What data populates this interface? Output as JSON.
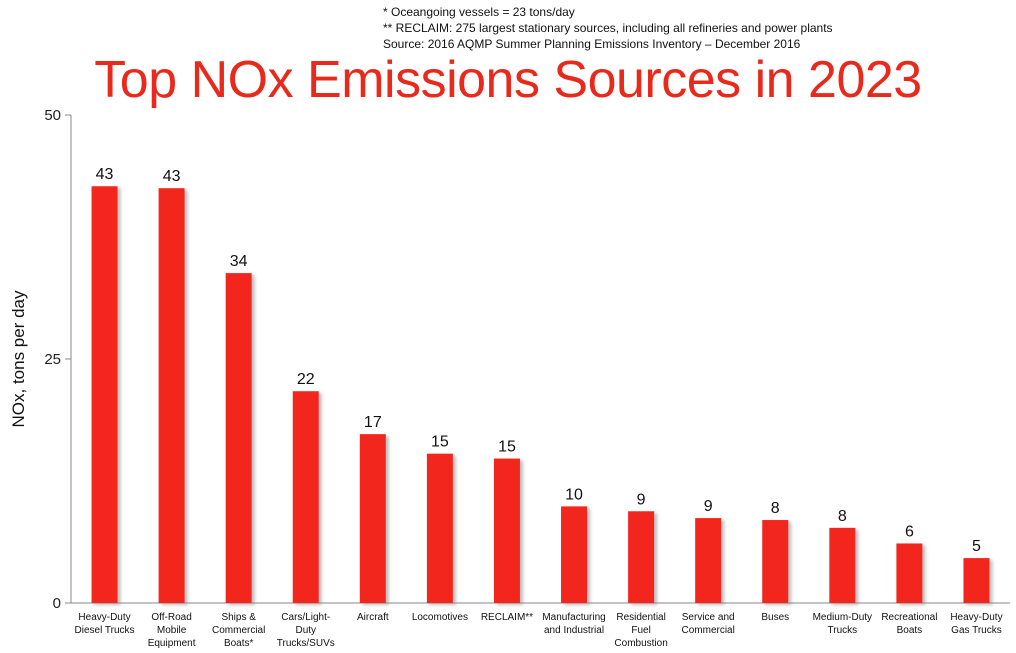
{
  "notes": [
    "* Oceangoing vessels = 23 tons/day",
    "** RECLAIM: 275 largest stationary sources, including all refineries and power plants",
    "Source: 2016 AQMP Summer Planning Emissions Inventory – December 2016"
  ],
  "chart_data": {
    "type": "bar",
    "title": "Top NOx Emissions Sources in 2023",
    "xlabel": "",
    "ylabel": "NOx, tons per day",
    "ylim": [
      0,
      50
    ],
    "yticks": [
      0,
      25,
      50
    ],
    "grid": false,
    "bar_color": "#f2261c",
    "categories": [
      [
        "Heavy-Duty",
        "Diesel Trucks"
      ],
      [
        "Off-Road",
        "Mobile",
        "Equipment"
      ],
      [
        "Ships &",
        "Commercial",
        "Boats*"
      ],
      [
        "Cars/Light-",
        "Duty",
        "Trucks/SUVs"
      ],
      [
        "Aircraft"
      ],
      [
        "Locomotives"
      ],
      [
        "RECLAIM**"
      ],
      [
        "Manufacturing",
        "and Industrial"
      ],
      [
        "Residential",
        "Fuel",
        "Combustion"
      ],
      [
        "Service and",
        "Commercial"
      ],
      [
        "Buses"
      ],
      [
        "Medium-Duty",
        "Trucks"
      ],
      [
        "Recreational",
        "Boats"
      ],
      [
        "Heavy-Duty",
        "Gas Trucks"
      ]
    ],
    "values": [
      42.7,
      42.5,
      33.8,
      21.7,
      17.3,
      15.3,
      14.8,
      9.9,
      9.4,
      8.7,
      8.5,
      7.7,
      6.1,
      4.6
    ],
    "value_labels": [
      "43",
      "43",
      "34",
      "22",
      "17",
      "15",
      "15",
      "10",
      "9",
      "9",
      "8",
      "8",
      "6",
      "5"
    ]
  }
}
